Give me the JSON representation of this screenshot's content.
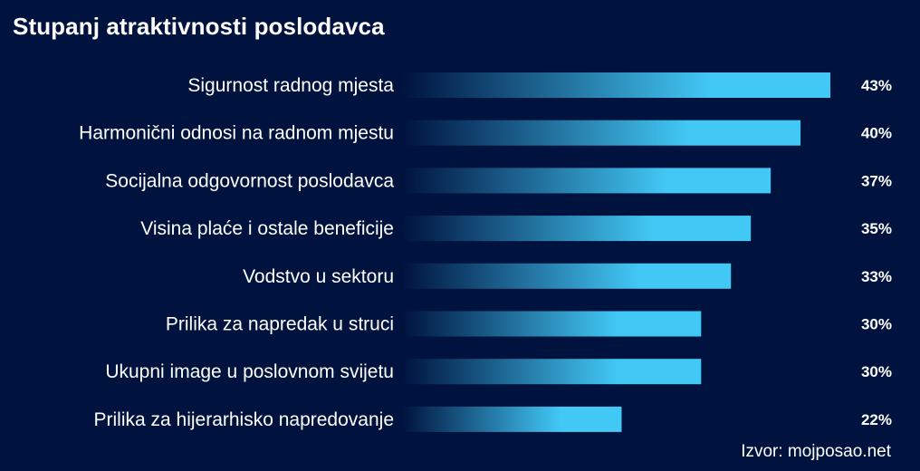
{
  "chart_data": {
    "type": "bar",
    "orientation": "horizontal",
    "title": "Stupanj atraktivnosti poslodavca",
    "categories": [
      "Sigurnost radnog mjesta",
      "Harmonični odnosi na radnom mjestu",
      "Socijalna odgovornost poslodavca",
      "Visina plaće i ostale beneficije",
      "Vodstvo u sektoru",
      "Prilika za napredak u struci",
      "Ukupni image u poslovnom svijetu",
      "Prilika za hijerarhisko napredovanje"
    ],
    "values": [
      43,
      40,
      37,
      35,
      33,
      30,
      30,
      22
    ],
    "value_labels": [
      "43%",
      "40%",
      "37%",
      "35%",
      "33%",
      "30%",
      "30%",
      "22%"
    ],
    "unit": "%",
    "grid": false,
    "legend": "none",
    "colors": {
      "background": "#00133f",
      "bar_start": "#00133f",
      "bar_end": "#42c8f5",
      "text": "#ffffff"
    }
  },
  "source": "Izvor: mojposao.net"
}
